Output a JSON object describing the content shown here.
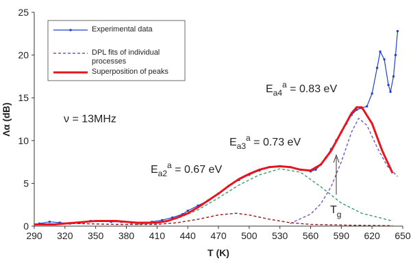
{
  "chart_data": {
    "type": "line",
    "xlabel": "T (K)",
    "ylabel": "Λα (dB)",
    "xlim": [
      290,
      650
    ],
    "xticks": [
      290,
      320,
      350,
      380,
      410,
      440,
      470,
      500,
      530,
      560,
      590,
      620,
      650
    ],
    "ylim": [
      0,
      25
    ],
    "yticks": [
      0,
      5,
      10,
      15,
      20,
      25
    ],
    "annotations": [
      {
        "text": "ν = 13MHz"
      },
      {
        "text": "E",
        "sub": "a2",
        "sup": "a",
        "rest": " = 0.67 eV"
      },
      {
        "text": "E",
        "sub": "a3",
        "sup": "a",
        "rest": " = 0.73 eV"
      },
      {
        "text": "E",
        "sub": "a4",
        "sup": "a",
        "rest": " = 0.83 eV"
      },
      {
        "text": "T",
        "sub": "g"
      }
    ],
    "series": [
      {
        "name": "Experimental data",
        "color": "#1f3fcf",
        "width": 1.2,
        "markers": true,
        "x": [
          295,
          305,
          315,
          325,
          335,
          345,
          355,
          365,
          375,
          385,
          395,
          405,
          415,
          425,
          435,
          440,
          450,
          460,
          470,
          480,
          490,
          500,
          510,
          520,
          530,
          540,
          550,
          560,
          565,
          570,
          575,
          580,
          585,
          590,
          595,
          600,
          605,
          610,
          615,
          620,
          625,
          628,
          632,
          636,
          638,
          641,
          643,
          645
        ],
        "values": [
          0.3,
          0.5,
          0.4,
          0.3,
          0.4,
          0.6,
          0.6,
          0.5,
          0.5,
          0.4,
          0.4,
          0.5,
          0.7,
          1.0,
          1.4,
          1.8,
          2.4,
          3.0,
          3.8,
          4.7,
          5.4,
          6.0,
          6.5,
          6.9,
          7.0,
          6.9,
          6.6,
          6.4,
          6.6,
          7.2,
          8.0,
          9.0,
          10.0,
          11.0,
          12.0,
          13.0,
          13.6,
          13.8,
          14.0,
          15.5,
          18.5,
          20.4,
          19.5,
          16.5,
          15.7,
          17.5,
          20.0,
          22.8
        ]
      },
      {
        "name": "DPL fits of individual processes",
        "color": "#7a4fc0",
        "width": 1.4,
        "dash": true,
        "x": [
          540,
          560,
          570,
          580,
          590,
          600,
          607,
          615,
          625,
          635,
          645
        ],
        "values": [
          0.3,
          1.4,
          2.6,
          4.6,
          7.5,
          11.0,
          12.6,
          11.8,
          9.2,
          7.0,
          5.8
        ]
      },
      {
        "color": "#3a9a6a",
        "width": 1.4,
        "dash": true,
        "x": [
          390,
          410,
          430,
          450,
          470,
          490,
          510,
          530,
          550,
          570,
          590,
          610,
          630,
          640
        ],
        "values": [
          0.2,
          0.4,
          0.9,
          1.9,
          3.3,
          4.8,
          6.0,
          6.7,
          6.3,
          4.6,
          2.7,
          1.5,
          0.9,
          0.6
        ]
      },
      {
        "color": "#8b1a1a",
        "width": 1.4,
        "dash": true,
        "x": [
          290,
          330,
          370,
          410,
          430,
          450,
          470,
          487,
          500,
          520,
          540,
          560,
          600,
          640
        ],
        "values": [
          0.15,
          0.3,
          0.2,
          0.2,
          0.4,
          0.8,
          1.3,
          1.5,
          1.3,
          0.8,
          0.4,
          0.2,
          0.1,
          0.05
        ]
      },
      {
        "name": "Superposition of peaks",
        "color": "#e8141b",
        "width": 3,
        "x": [
          290,
          300,
          310,
          320,
          330,
          340,
          350,
          360,
          370,
          380,
          390,
          400,
          410,
          420,
          430,
          440,
          450,
          460,
          470,
          480,
          490,
          500,
          510,
          520,
          530,
          540,
          550,
          560,
          570,
          580,
          590,
          600,
          605,
          610,
          620,
          630,
          640
        ],
        "values": [
          0.2,
          0.2,
          0.2,
          0.3,
          0.4,
          0.5,
          0.6,
          0.6,
          0.6,
          0.5,
          0.4,
          0.4,
          0.4,
          0.6,
          1.0,
          1.5,
          2.2,
          3.0,
          3.8,
          4.7,
          5.5,
          6.1,
          6.6,
          6.9,
          7.0,
          6.9,
          6.6,
          6.5,
          7.2,
          8.8,
          11.0,
          13.2,
          13.9,
          13.9,
          12.0,
          8.8,
          6.2
        ]
      }
    ]
  }
}
